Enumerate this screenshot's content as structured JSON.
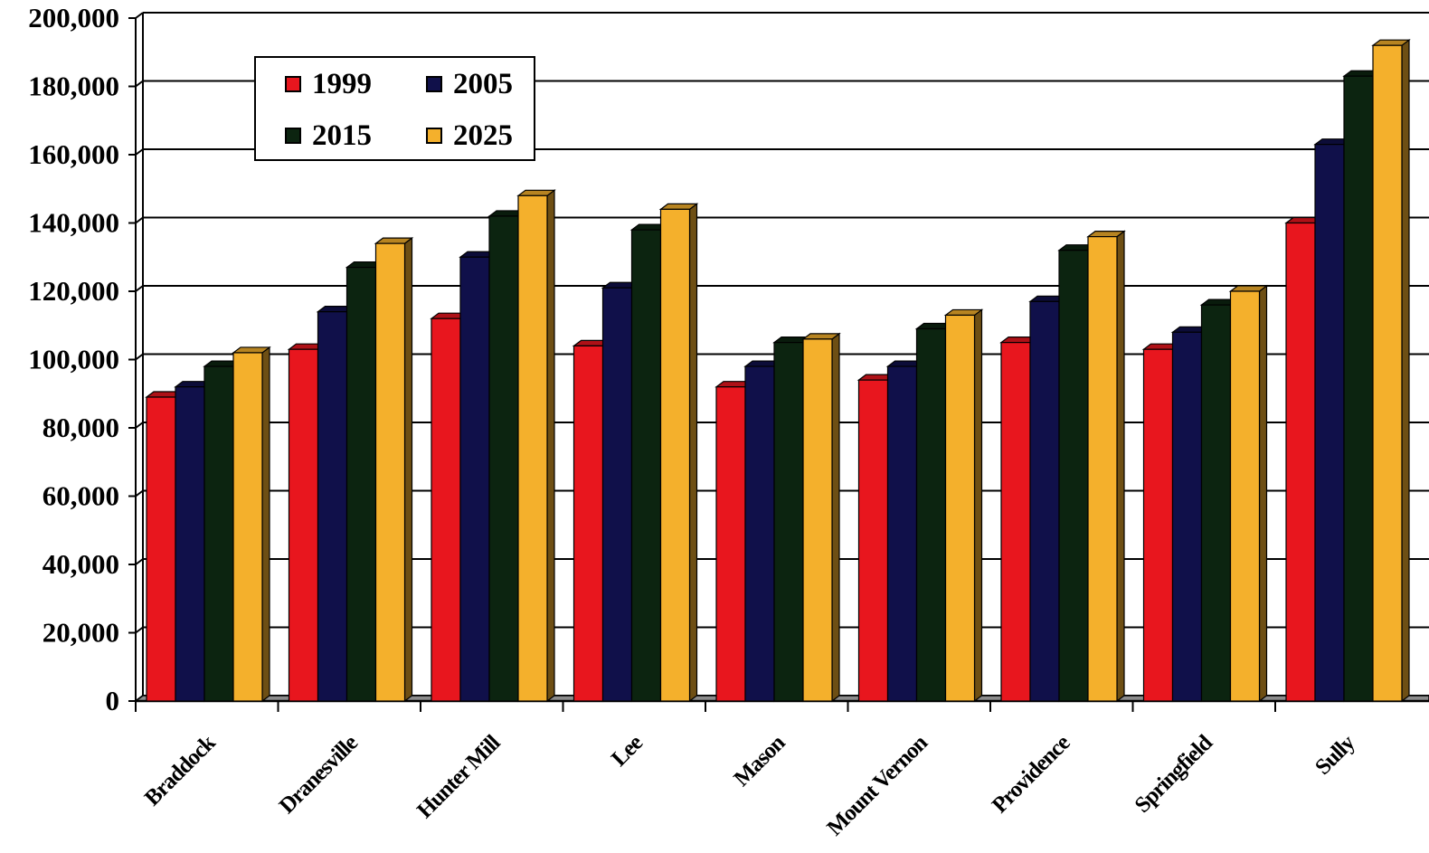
{
  "chart_data": {
    "type": "bar",
    "title": "",
    "xlabel": "",
    "ylabel": "",
    "ylim": [
      0,
      200000
    ],
    "yticks": [
      "0",
      "20,000",
      "40,000",
      "60,000",
      "80,000",
      "100,000",
      "120,000",
      "140,000",
      "160,000",
      "180,000",
      "200,000"
    ],
    "categories": [
      "Braddock",
      "Dranesville",
      "Hunter Mill",
      "Lee",
      "Mason",
      "Mount Vernon",
      "Providence",
      "Springfield",
      "Sully"
    ],
    "series": [
      {
        "name": "1999",
        "color": "#e8161e",
        "values": [
          89000,
          103000,
          112000,
          104000,
          92000,
          94000,
          105000,
          103000,
          140000
        ]
      },
      {
        "name": "2005",
        "color": "#10104a",
        "values": [
          92000,
          114000,
          130000,
          121000,
          98000,
          98000,
          117000,
          108000,
          163000
        ]
      },
      {
        "name": "2015",
        "color": "#0c2410",
        "values": [
          98000,
          127000,
          142000,
          138000,
          105000,
          109000,
          132000,
          116000,
          183000
        ]
      },
      {
        "name": "2025",
        "color": "#f4b02c",
        "values": [
          102000,
          134000,
          148000,
          144000,
          106000,
          113000,
          136000,
          120000,
          192000
        ]
      }
    ],
    "grid": true,
    "legend_position": "top-left",
    "style": "3d-bars"
  }
}
